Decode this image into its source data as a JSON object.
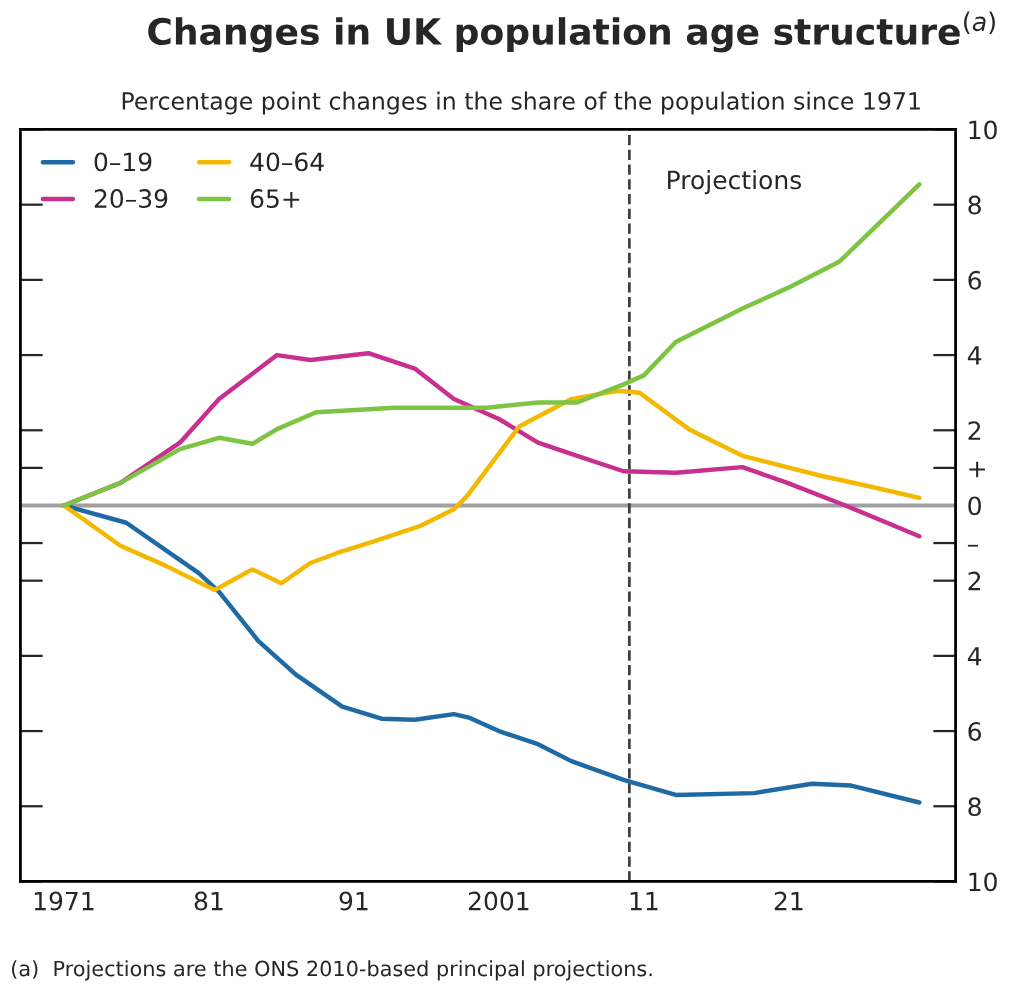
{
  "chart_data": {
    "type": "line",
    "title": "Changes in UK population age structure$^{(a)}$",
    "subtitle": "Percentage point changes in the share of the population since 1971",
    "annotations": [
      "(a)  Projections are the ONS 2010-based principal projections."
    ],
    "xlim": [
      1968,
      2032.5
    ],
    "ylim": [
      -10,
      10
    ],
    "xticks": [
      {
        "value": 1971,
        "label": "1971"
      },
      {
        "value": 1981,
        "label": "81"
      },
      {
        "value": 1991,
        "label": "91"
      },
      {
        "value": 2001,
        "label": "2001"
      },
      {
        "value": 2011,
        "label": "11"
      },
      {
        "value": 2021,
        "label": "21"
      }
    ],
    "yticks": [
      {
        "value": -10,
        "label": "10"
      },
      {
        "value": -8,
        "label": "8"
      },
      {
        "value": -6,
        "label": "6"
      },
      {
        "value": -4,
        "label": "4"
      },
      {
        "value": -2,
        "label": "2"
      },
      {
        "value": -1,
        "label": "–"
      },
      0,
      {
        "value": 1,
        "label": "+"
      },
      2,
      4,
      6,
      8,
      10
    ],
    "legend": "top left",
    "marker": "none",
    "line_style": "solid",
    "grid": false,
    "ref_lines": [
      {
        "axis": "y",
        "value": 0,
        "color": "#a0a0a0",
        "line_style": "solid"
      },
      {
        "axis": "x",
        "value": 2010,
        "label": "Projections",
        "color": "#404040",
        "line_style": "dashed"
      }
    ],
    "series": [
      {
        "name": "0–19",
        "color": "#1f6aa5",
        "x": [
          1971,
          1975.3,
          1980.3,
          1981.7,
          1984.4,
          1987,
          1990.2,
          1992.9,
          1995.2,
          1997.9,
          1999,
          2001,
          2003.7,
          2006,
          2009.6,
          2013.2,
          2018.6,
          2022.6,
          2025.3,
          2030
        ],
        "values": [
          0,
          -0.46,
          -1.8,
          -2.3,
          -3.6,
          -4.5,
          -5.35,
          -5.67,
          -5.7,
          -5.55,
          -5.65,
          -6.0,
          -6.35,
          -6.8,
          -7.3,
          -7.7,
          -7.65,
          -7.4,
          -7.45,
          -7.9
        ]
      },
      {
        "name": "20–39",
        "color": "#c8308f",
        "x": [
          1971,
          1974.9,
          1979,
          1981.7,
          1985.7,
          1988,
          1992,
          1995.2,
          1997.9,
          2001,
          2003.7,
          2006.4,
          2009.6,
          2013.2,
          2017.8,
          2020.9,
          2024.9,
          2030
        ],
        "values": [
          0,
          0.6,
          1.67,
          2.83,
          4.0,
          3.87,
          4.05,
          3.64,
          2.83,
          2.3,
          1.67,
          1.32,
          0.91,
          0.87,
          1.02,
          0.6,
          0,
          -0.82
        ]
      },
      {
        "name": "40–64",
        "color": "#f5b800",
        "x": [
          1971,
          1974.9,
          1978,
          1981.4,
          1984,
          1986,
          1988,
          1989.8,
          1992,
          1995.6,
          1997.9,
          1998.8,
          2002.4,
          2006,
          2009.2,
          2010.7,
          2014.1,
          2017.8,
          2023.2,
          2026.3,
          2030
        ],
        "values": [
          0,
          -1.07,
          -1.6,
          -2.25,
          -1.7,
          -2.07,
          -1.53,
          -1.27,
          -1.0,
          -0.54,
          -0.1,
          0.25,
          2.1,
          2.83,
          3.05,
          3.0,
          2.03,
          1.32,
          0.79,
          0.53,
          0.2
        ]
      },
      {
        "name": "65+",
        "color": "#7cc442",
        "x": [
          1971,
          1974.9,
          1979,
          1981.7,
          1984,
          1985.7,
          1988.4,
          1993.8,
          2000.2,
          2003.7,
          2006.4,
          2009.6,
          2011,
          2013.2,
          2017.8,
          2020.9,
          2024.5,
          2030
        ],
        "values": [
          0,
          0.6,
          1.5,
          1.8,
          1.64,
          2.03,
          2.48,
          2.6,
          2.6,
          2.74,
          2.74,
          3.22,
          3.46,
          4.35,
          5.24,
          5.78,
          6.49,
          8.54
        ]
      }
    ]
  }
}
